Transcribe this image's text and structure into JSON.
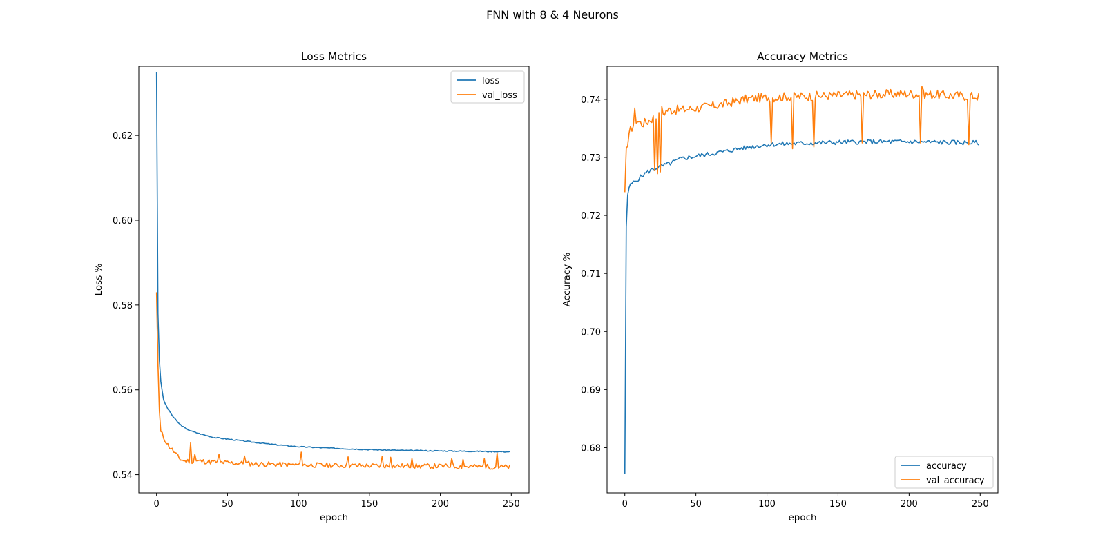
{
  "figure": {
    "title": "FNN with 8 & 4 Neurons"
  },
  "colors": {
    "series_a": "#1f77b4",
    "series_b": "#ff7f0e"
  },
  "chart_data": [
    {
      "type": "line",
      "title": "Loss Metrics",
      "xlabel": "epoch",
      "ylabel": "Loss %",
      "xlim": [
        -12.5,
        262.5
      ],
      "ylim": [
        0.5357,
        0.6363
      ],
      "xticks": [
        0,
        50,
        100,
        150,
        200,
        250
      ],
      "yticks": [
        0.54,
        0.56,
        0.58,
        0.6,
        0.62
      ],
      "legend_position": "top-right",
      "grid": false,
      "epochs": 250,
      "series": [
        {
          "name": "loss",
          "color": "#1f77b4",
          "anchors": [
            [
              0,
              0.635
            ],
            [
              1,
              0.578
            ],
            [
              2,
              0.567
            ],
            [
              3,
              0.562
            ],
            [
              5,
              0.5575
            ],
            [
              8,
              0.5555
            ],
            [
              12,
              0.5535
            ],
            [
              16,
              0.552
            ],
            [
              20,
              0.551
            ],
            [
              25,
              0.5502
            ],
            [
              30,
              0.5497
            ],
            [
              40,
              0.5488
            ],
            [
              50,
              0.5484
            ],
            [
              60,
              0.548
            ],
            [
              70,
              0.5476
            ],
            [
              80,
              0.5472
            ],
            [
              100,
              0.5466
            ],
            [
              120,
              0.5463
            ],
            [
              150,
              0.5459
            ],
            [
              175,
              0.5457
            ],
            [
              200,
              0.5456
            ],
            [
              225,
              0.5455
            ],
            [
              249,
              0.5454
            ]
          ],
          "noise": 0.00012,
          "seed": 3
        },
        {
          "name": "val_loss",
          "color": "#ff7f0e",
          "anchors": [
            [
              0,
              0.583
            ],
            [
              1,
              0.566
            ],
            [
              2,
              0.555
            ],
            [
              3,
              0.5502
            ],
            [
              5,
              0.5488
            ],
            [
              8,
              0.547
            ],
            [
              12,
              0.5455
            ],
            [
              16,
              0.5438
            ],
            [
              20,
              0.5432
            ],
            [
              30,
              0.5432
            ],
            [
              50,
              0.5428
            ],
            [
              75,
              0.5425
            ],
            [
              100,
              0.5423
            ],
            [
              150,
              0.5421
            ],
            [
              200,
              0.542
            ],
            [
              249,
              0.5418
            ]
          ],
          "noise": 0.0006,
          "seed": 11,
          "spikes": [
            [
              24,
              0.5475
            ],
            [
              27,
              0.5448
            ],
            [
              44,
              0.5448
            ],
            [
              62,
              0.5444
            ],
            [
              102,
              0.5453
            ],
            [
              135,
              0.5442
            ],
            [
              159,
              0.5443
            ],
            [
              165,
              0.5441
            ],
            [
              180,
              0.5438
            ],
            [
              208,
              0.5438
            ],
            [
              216,
              0.5436
            ],
            [
              231,
              0.5438
            ],
            [
              240,
              0.5451
            ]
          ]
        }
      ]
    },
    {
      "type": "line",
      "title": "Accuracy Metrics",
      "xlabel": "epoch",
      "ylabel": "Accuracy %",
      "xlim": [
        -12.5,
        262.5
      ],
      "ylim": [
        0.6722,
        0.7457
      ],
      "xticks": [
        0,
        50,
        100,
        150,
        200,
        250
      ],
      "yticks": [
        0.68,
        0.69,
        0.7,
        0.71,
        0.72,
        0.73,
        0.74
      ],
      "legend_position": "bottom-right",
      "grid": false,
      "epochs": 250,
      "series": [
        {
          "name": "accuracy",
          "color": "#1f77b4",
          "anchors": [
            [
              0,
              0.6755
            ],
            [
              1,
              0.718
            ],
            [
              2,
              0.7235
            ],
            [
              3,
              0.7248
            ],
            [
              5,
              0.7255
            ],
            [
              8,
              0.726
            ],
            [
              12,
              0.7268
            ],
            [
              16,
              0.7275
            ],
            [
              20,
              0.728
            ],
            [
              30,
              0.7288
            ],
            [
              40,
              0.7298
            ],
            [
              50,
              0.7302
            ],
            [
              60,
              0.7306
            ],
            [
              70,
              0.731
            ],
            [
              80,
              0.7315
            ],
            [
              100,
              0.7322
            ],
            [
              120,
              0.7324
            ],
            [
              150,
              0.7326
            ],
            [
              175,
              0.7327
            ],
            [
              200,
              0.7327
            ],
            [
              225,
              0.7326
            ],
            [
              249,
              0.7325
            ]
          ],
          "noise": 0.0004,
          "seed": 5
        },
        {
          "name": "val_accuracy",
          "color": "#ff7f0e",
          "anchors": [
            [
              0,
              0.724
            ],
            [
              1,
              0.7315
            ],
            [
              2,
              0.732
            ],
            [
              3,
              0.7342
            ],
            [
              5,
              0.7352
            ],
            [
              8,
              0.7365
            ],
            [
              12,
              0.7358
            ],
            [
              16,
              0.7362
            ],
            [
              20,
              0.7368
            ],
            [
              25,
              0.7372
            ],
            [
              30,
              0.7382
            ],
            [
              40,
              0.7382
            ],
            [
              50,
              0.7385
            ],
            [
              60,
              0.7388
            ],
            [
              70,
              0.7392
            ],
            [
              80,
              0.7398
            ],
            [
              90,
              0.7402
            ],
            [
              100,
              0.7403
            ],
            [
              120,
              0.7405
            ],
            [
              150,
              0.7407
            ],
            [
              200,
              0.741
            ],
            [
              249,
              0.7405
            ]
          ],
          "noise": 0.0008,
          "seed": 17,
          "spikes": [
            [
              7,
              0.7385
            ],
            [
              21,
              0.7278
            ],
            [
              23,
              0.7272
            ],
            [
              25,
              0.7275
            ],
            [
              26,
              0.7388
            ],
            [
              103,
              0.7325
            ],
            [
              118,
              0.7315
            ],
            [
              133,
              0.7318
            ],
            [
              167,
              0.7325
            ],
            [
              208,
              0.7325
            ],
            [
              209,
              0.7422
            ],
            [
              242,
              0.7322
            ]
          ]
        }
      ]
    }
  ]
}
